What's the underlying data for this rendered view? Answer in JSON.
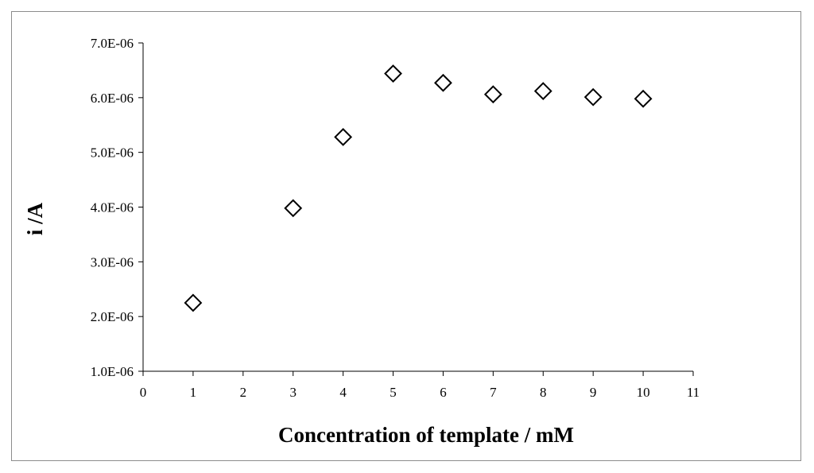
{
  "chart_data": {
    "type": "scatter",
    "title": "",
    "xlabel": "Concentration of template / mM",
    "ylabel": "i /A",
    "xlim": [
      0,
      11
    ],
    "ylim": [
      1e-06,
      7e-06
    ],
    "x_ticks": [
      0,
      1,
      2,
      3,
      4,
      5,
      6,
      7,
      8,
      9,
      10,
      11
    ],
    "x_tick_labels": [
      "0",
      "1",
      "2",
      "3",
      "4",
      "5",
      "6",
      "7",
      "8",
      "9",
      "10",
      "11"
    ],
    "y_ticks": [
      1e-06,
      2e-06,
      3e-06,
      4e-06,
      5e-06,
      6e-06,
      7e-06
    ],
    "y_tick_labels": [
      "1.0E-06",
      "2.0E-06",
      "3.0E-06",
      "4.0E-06",
      "5.0E-06",
      "6.0E-06",
      "7.0E-06"
    ],
    "grid": false,
    "marker": "open-diamond",
    "marker_color": "#000000",
    "series": [
      {
        "x": [
          1,
          3,
          4,
          5,
          6,
          7,
          8,
          9,
          10
        ],
        "y": [
          2.25e-06,
          3.98e-06,
          5.28e-06,
          6.44e-06,
          6.27e-06,
          6.06e-06,
          6.12e-06,
          6.01e-06,
          5.98e-06
        ]
      }
    ]
  }
}
